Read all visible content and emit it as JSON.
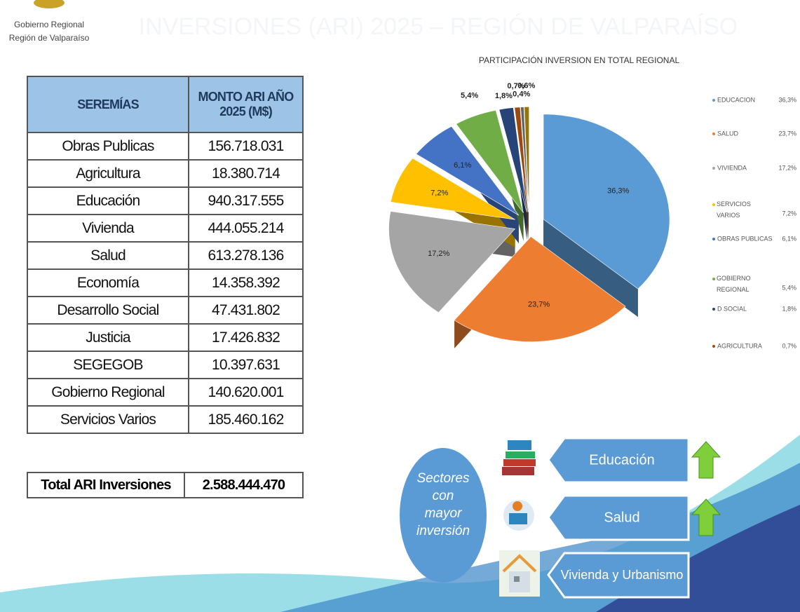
{
  "header": {
    "logo_lines": [
      "Gobierno Regional",
      "Región de Valparaíso"
    ],
    "title": "INVERSIONES (ARI) 2025 – REGIÓN DE VALPARAÍSO"
  },
  "table": {
    "columns": [
      "SEREMÍAS",
      "MONTO ARI AÑO 2025 (M$)"
    ],
    "rows": [
      [
        "Obras Publicas",
        "156.718.031"
      ],
      [
        "Agricultura",
        "18.380.714"
      ],
      [
        "Educación",
        "940.317.555"
      ],
      [
        "Vivienda",
        "444.055.214"
      ],
      [
        "Salud",
        "613.278.136"
      ],
      [
        "Economía",
        "14.358.392"
      ],
      [
        "Desarrollo Social",
        "47.431.802"
      ],
      [
        "Justicia",
        "17.426.832"
      ],
      [
        "SEGEGOB",
        "10.397.631"
      ],
      [
        "Gobierno Regional",
        "140.620.001"
      ],
      [
        "Servicios Varios",
        "185.460.162"
      ]
    ],
    "total": [
      "Total ARI Inversiones",
      "2.588.444.470"
    ]
  },
  "chart_data": {
    "type": "pie",
    "title": "PARTICIPACIÓN INVERSION EN TOTAL REGIONAL",
    "categories": [
      "EDUCACION",
      "SALUD",
      "VIVIENDA",
      "SERVICIOS VARIOS",
      "OBRAS PUBLICAS",
      "GOBIERNO REGIONAL",
      "D SOCIAL",
      "AGRICULTURA",
      null,
      null
    ],
    "values": [
      36.3,
      23.7,
      17.2,
      7.2,
      6.1,
      5.4,
      1.8,
      0.7,
      0.4,
      0.6
    ],
    "value_labels": [
      "36,3%",
      "23,7%",
      "17,2%",
      "7,2%",
      "6,1%",
      "5,4%",
      "1,8%",
      "0,7%",
      "0,4%",
      "0,6%"
    ],
    "colors": [
      "#5b9bd5",
      "#ed7d31",
      "#a5a5a5",
      "#ffc000",
      "#4472c4",
      "#70ad47",
      "#264478",
      "#9e480e",
      "#636363",
      "#997300"
    ],
    "legend": "right"
  },
  "sectors": {
    "heading": "Sectores con mayor inversión",
    "items": [
      "Educación",
      "Salud",
      "Vivienda y Urbanismo"
    ]
  }
}
